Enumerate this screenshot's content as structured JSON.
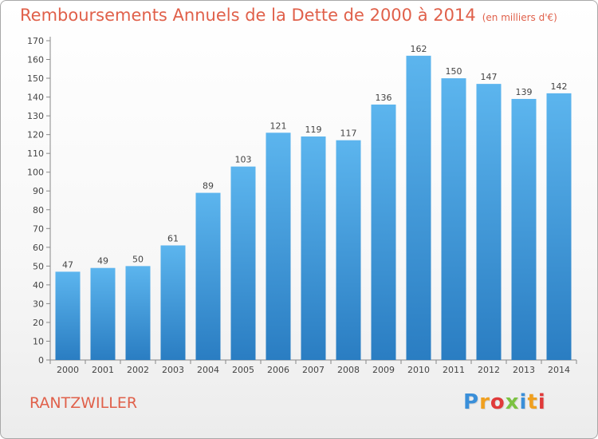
{
  "chart_data": {
    "type": "bar",
    "title": "Remboursements Annuels de la Dette de 2000 à 2014",
    "subtitle": "(en milliers d'€)",
    "categories": [
      "2000",
      "2001",
      "2002",
      "2003",
      "2004",
      "2005",
      "2006",
      "2007",
      "2008",
      "2009",
      "2010",
      "2011",
      "2012",
      "2013",
      "2014"
    ],
    "values": [
      47,
      49,
      50,
      61,
      89,
      103,
      121,
      119,
      117,
      136,
      162,
      150,
      147,
      139,
      142
    ],
    "ylim": [
      0,
      170
    ],
    "yticks": [
      0,
      10,
      20,
      30,
      40,
      50,
      60,
      70,
      80,
      90,
      100,
      110,
      120,
      130,
      140,
      150,
      160,
      170
    ],
    "grid": false,
    "legend": "none",
    "data_labels": true
  },
  "town": "RANTZWILLER",
  "logo": {
    "letters": [
      "P",
      "r",
      "o",
      "x",
      "i",
      "t",
      "i"
    ],
    "colors": [
      "#3a8fd9",
      "#f0a020",
      "#e03a3a",
      "#7cc242",
      "#3a8fd9",
      "#f0a020",
      "#e03a3a"
    ]
  },
  "colors": {
    "title": "#e0604a",
    "bar_top": "#5cb5ee",
    "bar_bottom": "#2a7dc2",
    "axis": "#888888",
    "text": "#444444"
  }
}
